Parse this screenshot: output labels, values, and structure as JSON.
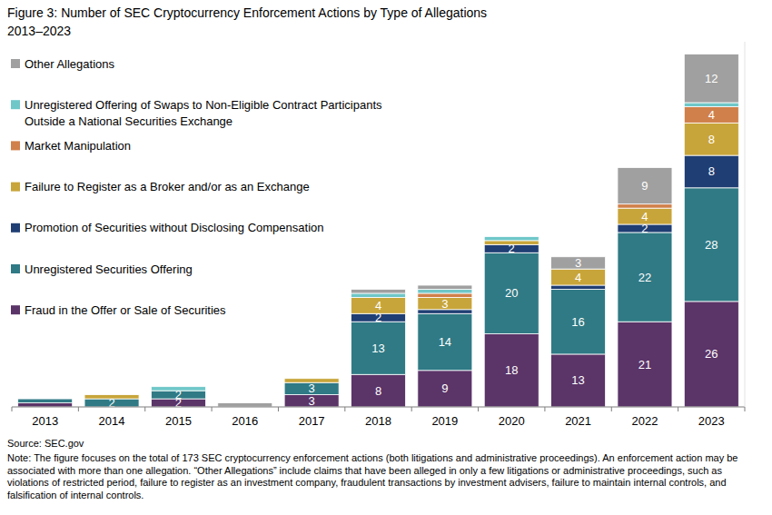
{
  "chart_data": {
    "type": "bar",
    "title": "Figure 3: Number of SEC Cryptocurrency Enforcement Actions by Type of Allegations",
    "subtitle": "2013–2023",
    "categories": [
      "2013",
      "2014",
      "2015",
      "2016",
      "2017",
      "2018",
      "2019",
      "2020",
      "2021",
      "2022",
      "2023"
    ],
    "series": [
      {
        "name": "Fraud in the Offer or Sale of Securities",
        "color": "#5b3468",
        "values": [
          1,
          0,
          2,
          0,
          3,
          8,
          9,
          18,
          13,
          21,
          26
        ]
      },
      {
        "name": "Unregistered Securities Offering",
        "color": "#2f7a85",
        "values": [
          1,
          2,
          2,
          0,
          3,
          13,
          14,
          20,
          16,
          22,
          28
        ]
      },
      {
        "name": "Promotion of Securities without Disclosing Compensation",
        "color": "#1f3e73",
        "values": [
          0,
          0,
          0,
          0,
          0,
          2,
          1,
          2,
          1,
          2,
          8
        ]
      },
      {
        "name": "Failure to Register as a Broker and/or as an Exchange",
        "color": "#c8a53a",
        "values": [
          0,
          1,
          0,
          0,
          1,
          4,
          3,
          1,
          4,
          4,
          8
        ]
      },
      {
        "name": "Market Manipulation",
        "color": "#d0804a",
        "values": [
          0,
          0,
          0,
          0,
          0,
          0,
          1,
          0,
          0,
          1,
          4
        ]
      },
      {
        "name": "Unregistered Offering of Swaps to Non-Eligible Contract Participants Outside a National Securities Exchange",
        "color": "#6fc7c8",
        "values": [
          0,
          0,
          1,
          0,
          0,
          1,
          1,
          1,
          0,
          0,
          1
        ]
      },
      {
        "name": "Other Allegations",
        "color": "#a0a0a0",
        "values": [
          0,
          0,
          0,
          1,
          0,
          1,
          1,
          0,
          3,
          9,
          12
        ]
      }
    ],
    "stacked": true,
    "data_labels": true,
    "legend": "top-left",
    "grid": false,
    "tick_labels": "x",
    "ylim": [
      0,
      90
    ],
    "yticks": [],
    "source": "Source: SEC.gov",
    "note": "Note: The figure focuses on the total of 173 SEC cryptocurrency enforcement actions (both litigations and administrative proceedings). An enforcement action may be associated with more than one allegation. “Other Allegations” include claims that have been alleged in only a few litigations or administrative proceedings, such as violations of restricted period, failure to register as an investment company, fraudulent transactions by investment advisers, failure to maintain internal controls, and falsification of internal controls."
  }
}
